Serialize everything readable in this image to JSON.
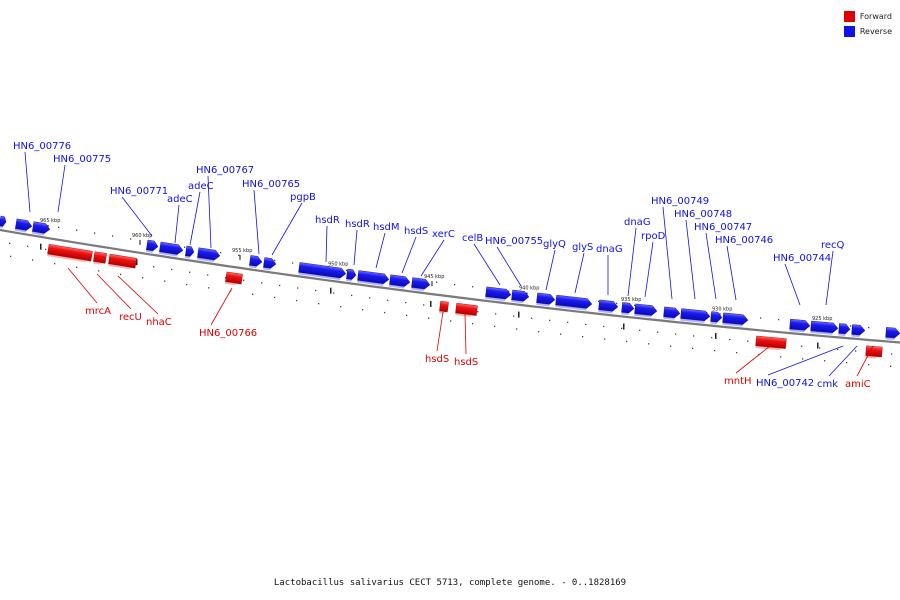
{
  "colors": {
    "forward": "#e00000",
    "reverse": "#1010e8",
    "backbone": "#7a7a7a"
  },
  "legend": [
    {
      "label": "Forward",
      "strand": "forward"
    },
    {
      "label": "Reverse",
      "strand": "reverse"
    }
  ],
  "caption": "Lactobacillus salivarius CECT 5713, complete genome. - 0..1828169",
  "ticks": [
    "965 kbp",
    "960 kbp",
    "955 kbp",
    "950 kbp",
    "945 kbp",
    "940 kbp",
    "935 kbp",
    "930 kbp",
    "925 kbp"
  ],
  "genes": [
    {
      "label": "HN6_00776",
      "strand": "reverse"
    },
    {
      "label": "HN6_00775",
      "strand": "reverse"
    },
    {
      "label": "mrcA",
      "strand": "forward"
    },
    {
      "label": "recU",
      "strand": "forward"
    },
    {
      "label": "nhaC",
      "strand": "forward"
    },
    {
      "label": "HN6_00771",
      "strand": "reverse"
    },
    {
      "label": "adeC",
      "strand": "reverse"
    },
    {
      "label": "adeC",
      "strand": "reverse"
    },
    {
      "label": "HN6_00767",
      "strand": "reverse"
    },
    {
      "label": "HN6_00766",
      "strand": "forward"
    },
    {
      "label": "HN6_00765",
      "strand": "reverse"
    },
    {
      "label": "pgpB",
      "strand": "reverse"
    },
    {
      "label": "hsdR",
      "strand": "reverse"
    },
    {
      "label": "hsdR",
      "strand": "reverse"
    },
    {
      "label": "hsdM",
      "strand": "reverse"
    },
    {
      "label": "hsdS",
      "strand": "reverse"
    },
    {
      "label": "xerC",
      "strand": "reverse"
    },
    {
      "label": "hsdS",
      "strand": "forward"
    },
    {
      "label": "hsdS",
      "strand": "forward"
    },
    {
      "label": "celB",
      "strand": "reverse"
    },
    {
      "label": "HN6_00755",
      "strand": "reverse"
    },
    {
      "label": "glyQ",
      "strand": "reverse"
    },
    {
      "label": "glyS",
      "strand": "reverse"
    },
    {
      "label": "dnaG",
      "strand": "reverse"
    },
    {
      "label": "dnaG",
      "strand": "reverse"
    },
    {
      "label": "rpoD",
      "strand": "reverse"
    },
    {
      "label": "HN6_00749",
      "strand": "reverse"
    },
    {
      "label": "HN6_00748",
      "strand": "reverse"
    },
    {
      "label": "HN6_00747",
      "strand": "reverse"
    },
    {
      "label": "HN6_00746",
      "strand": "reverse"
    },
    {
      "label": "HN6_00744",
      "strand": "reverse"
    },
    {
      "label": "recQ",
      "strand": "reverse"
    },
    {
      "label": "mntH",
      "strand": "forward"
    },
    {
      "label": "HN6_00742",
      "strand": "reverse"
    },
    {
      "label": "cmk",
      "strand": "reverse"
    },
    {
      "label": "amiC",
      "strand": "forward"
    }
  ]
}
